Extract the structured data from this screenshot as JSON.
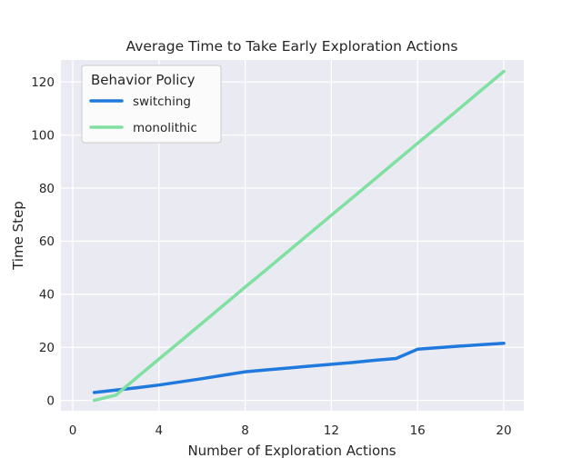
{
  "style": {
    "figure_bg": "#ffffff",
    "plot_bg": "#eaeaf2",
    "grid_color": "#ffffff",
    "text_color": "#262626",
    "legend_bg": "#fbfbfc",
    "legend_border": "#cccccc"
  },
  "legend": {
    "title": "Behavior Policy",
    "items": [
      "switching",
      "monolithic"
    ]
  },
  "chart_data": {
    "type": "line",
    "title": "Average Time to Take Early Exploration Actions",
    "xlabel": "Number of Exploration Actions",
    "ylabel": "Time Step",
    "legend_title": "Behavior Policy",
    "legend_position": "upper left",
    "grid": true,
    "x": [
      1,
      2,
      3,
      4,
      5,
      6,
      7,
      8,
      9,
      10,
      11,
      12,
      13,
      14,
      15,
      16,
      17,
      18,
      19,
      20
    ],
    "series": [
      {
        "name": "switching",
        "color": "#2079dd",
        "values": [
          3.0,
          3.9,
          4.8,
          5.8,
          7.0,
          8.2,
          9.5,
          10.8,
          11.5,
          12.2,
          12.9,
          13.6,
          14.3,
          15.1,
          15.8,
          19.3,
          19.9,
          20.5,
          21.0,
          21.5
        ]
      },
      {
        "name": "monolithic",
        "color": "#80e0a1",
        "values": [
          0.0,
          2.0,
          8.8,
          15.6,
          22.3,
          29.1,
          35.9,
          42.7,
          49.4,
          56.2,
          63.0,
          69.8,
          76.5,
          83.3,
          90.1,
          96.9,
          103.6,
          110.4,
          117.2,
          124.0
        ]
      }
    ],
    "xticks": [
      0,
      4,
      8,
      12,
      16,
      20
    ],
    "yticks": [
      0,
      20,
      40,
      60,
      80,
      100,
      120
    ],
    "xlim": [
      -0.55,
      20.93
    ],
    "ylim": [
      -3.9,
      128.3
    ]
  }
}
